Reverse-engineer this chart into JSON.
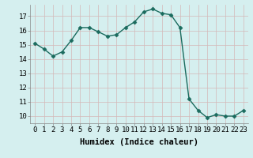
{
  "x": [
    0,
    1,
    2,
    3,
    4,
    5,
    6,
    7,
    8,
    9,
    10,
    11,
    12,
    13,
    14,
    15,
    16,
    17,
    18,
    19,
    20,
    21,
    22,
    23
  ],
  "y": [
    15.1,
    14.7,
    14.2,
    14.5,
    15.3,
    16.2,
    16.2,
    15.9,
    15.6,
    15.7,
    16.2,
    16.6,
    17.3,
    17.5,
    17.2,
    17.1,
    16.2,
    11.2,
    10.4,
    9.9,
    10.1,
    10.0,
    10.0,
    10.4
  ],
  "line_color": "#1a6b5e",
  "marker": "D",
  "marker_size": 2.5,
  "bg_color": "#d5efef",
  "grid_color": "#c8d8d8",
  "xlabel": "Humidex (Indice chaleur)",
  "xlim": [
    -0.5,
    23.5
  ],
  "ylim": [
    9.5,
    17.8
  ],
  "yticks": [
    10,
    11,
    12,
    13,
    14,
    15,
    16,
    17
  ],
  "xticks": [
    0,
    1,
    2,
    3,
    4,
    5,
    6,
    7,
    8,
    9,
    10,
    11,
    12,
    13,
    14,
    15,
    16,
    17,
    18,
    19,
    20,
    21,
    22,
    23
  ],
  "xtick_labels": [
    "0",
    "1",
    "2",
    "3",
    "4",
    "5",
    "6",
    "7",
    "8",
    "9",
    "10",
    "11",
    "12",
    "13",
    "14",
    "15",
    "16",
    "17",
    "18",
    "19",
    "20",
    "21",
    "22",
    "23"
  ],
  "xlabel_fontsize": 7.5,
  "tick_fontsize": 6.5,
  "line_width": 1.0
}
